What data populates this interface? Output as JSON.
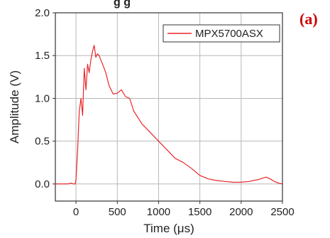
{
  "chart_data": {
    "type": "line",
    "title": "",
    "top_title_fragment": "g  g",
    "panel_label": "(a)",
    "xlabel": "Time (μs)",
    "ylabel": "Amplitude (V)",
    "xlim": [
      -250,
      2500
    ],
    "ylim": [
      -0.2,
      2.0
    ],
    "xticks": [
      0,
      500,
      1000,
      1500,
      2000,
      2500
    ],
    "yticks": [
      0.0,
      0.5,
      1.0,
      1.5,
      2.0
    ],
    "xtick_labels": [
      "0",
      "500",
      "1000",
      "1500",
      "2000",
      "2500"
    ],
    "ytick_labels": [
      "0.0",
      "0.5",
      "1.0",
      "1.5",
      "2.0"
    ],
    "grid": true,
    "legend_position": "top-right",
    "colors": {
      "series": "#e8262a",
      "panel_label": "#cc0000",
      "grid": "#b8b8b8",
      "axis": "#333333"
    },
    "series": [
      {
        "name": "MPX5700ASX",
        "x": [
          -250,
          -200,
          -150,
          -100,
          -60,
          -30,
          -10,
          0,
          20,
          40,
          60,
          80,
          100,
          120,
          140,
          160,
          180,
          200,
          220,
          240,
          260,
          280,
          300,
          330,
          360,
          400,
          450,
          500,
          550,
          600,
          650,
          700,
          800,
          900,
          1000,
          1100,
          1200,
          1300,
          1400,
          1500,
          1600,
          1700,
          1800,
          1900,
          2000,
          2100,
          2200,
          2300,
          2350,
          2400,
          2450,
          2500
        ],
        "y": [
          0.0,
          0.0,
          0.0,
          0.0,
          0.01,
          0.0,
          0.0,
          0.05,
          0.4,
          0.85,
          1.0,
          0.8,
          1.35,
          1.1,
          1.4,
          1.3,
          1.45,
          1.55,
          1.62,
          1.48,
          1.52,
          1.5,
          1.45,
          1.38,
          1.3,
          1.15,
          1.05,
          1.06,
          1.1,
          1.02,
          1.0,
          0.85,
          0.7,
          0.6,
          0.5,
          0.4,
          0.3,
          0.25,
          0.18,
          0.1,
          0.06,
          0.04,
          0.03,
          0.02,
          0.02,
          0.03,
          0.05,
          0.08,
          0.06,
          0.03,
          0.01,
          0.0
        ]
      }
    ]
  }
}
